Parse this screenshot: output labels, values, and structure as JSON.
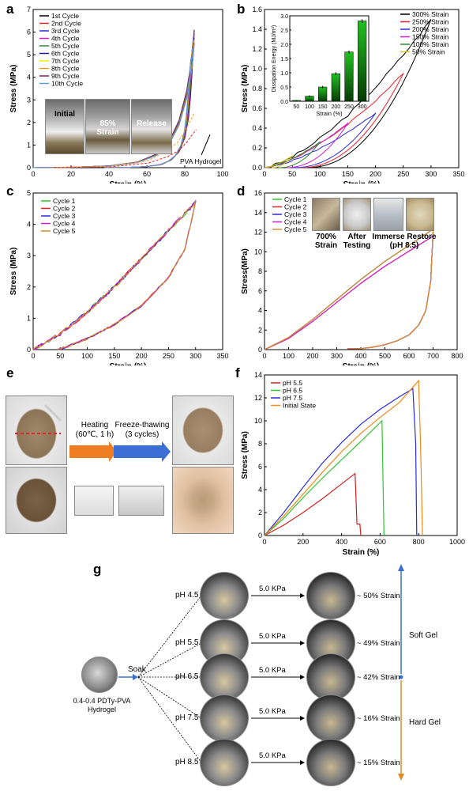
{
  "panels": {
    "a": {
      "label": "a"
    },
    "b": {
      "label": "b"
    },
    "c": {
      "label": "c"
    },
    "d": {
      "label": "d"
    },
    "e": {
      "label": "e"
    },
    "f": {
      "label": "f"
    },
    "g": {
      "label": "g"
    }
  },
  "chart_data": [
    {
      "id": "a",
      "type": "line",
      "xlabel": "Strain (%)",
      "ylabel": "Stress (MPa)",
      "xlim": [
        0,
        100
      ],
      "ylim": [
        0,
        7
      ],
      "xticks": [
        0,
        20,
        40,
        60,
        80,
        100
      ],
      "yticks": [
        0,
        1,
        2,
        3,
        4,
        5,
        6,
        7
      ],
      "legend": "top-left",
      "series": [
        {
          "name": "1st Cycle",
          "color": "#000000"
        },
        {
          "name": "2nd Cycle",
          "color": "#e8202a"
        },
        {
          "name": "3rd Cycle",
          "color": "#2a2adc"
        },
        {
          "name": "4th Cycle",
          "color": "#d11fcb"
        },
        {
          "name": "5th Cycle",
          "color": "#2f8a2f"
        },
        {
          "name": "6th Cycle",
          "color": "#1c1c8c"
        },
        {
          "name": "7th Cycle",
          "color": "#f0f000"
        },
        {
          "name": "8th Cycle",
          "color": "#f0a020"
        },
        {
          "name": "9th Cycle",
          "color": "#8c1c5a"
        },
        {
          "name": "10th Cycle",
          "color": "#5aa0e0"
        }
      ],
      "loading_x": [
        0,
        20,
        40,
        55,
        65,
        72,
        77,
        81,
        84,
        85
      ],
      "loading_y": [
        0,
        0.02,
        0.08,
        0.25,
        0.6,
        1.2,
        2.1,
        3.4,
        5.0,
        6.1
      ],
      "unloading_x": [
        85,
        84,
        83,
        82,
        80,
        77,
        73,
        68,
        60,
        50,
        40
      ],
      "unloading_y": [
        6.1,
        4.4,
        3.1,
        2.2,
        1.3,
        0.7,
        0.35,
        0.15,
        0.05,
        0.01,
        0
      ],
      "pva_x": [
        10,
        40,
        60,
        70,
        76,
        80,
        83,
        85
      ],
      "pva_y": [
        0,
        0.05,
        0.3,
        0.7,
        1.1,
        1.6,
        2.1,
        2.4
      ],
      "annotations": {
        "pva": "PVA Hydrogel",
        "inset_initial": "Initial",
        "inset_strain_1": "85%",
        "inset_strain_2": "Strain",
        "inset_release": "Release"
      }
    },
    {
      "id": "b",
      "type": "line",
      "xlabel": "Strain (%)",
      "ylabel": "Stress (MPa)",
      "xlim": [
        0,
        350
      ],
      "ylim": [
        0,
        1.6
      ],
      "xticks": [
        0,
        50,
        100,
        150,
        200,
        250,
        300,
        350
      ],
      "yticks": [
        0.0,
        0.2,
        0.4,
        0.6,
        0.8,
        1.0,
        1.2,
        1.4,
        1.6
      ],
      "legend": "top-right",
      "series": [
        {
          "name": "300% Strain",
          "color": "#000000",
          "max_strain": 300,
          "peak": 1.5
        },
        {
          "name": "250% Strain",
          "color": "#e8202a",
          "max_strain": 250,
          "peak": 0.95
        },
        {
          "name": "200% Strain",
          "color": "#2a2adc",
          "max_strain": 200,
          "peak": 0.55
        },
        {
          "name": "150% Strain",
          "color": "#d11fcb",
          "max_strain": 150,
          "peak": 0.45
        },
        {
          "name": "100% Strain",
          "color": "#2f8a2f",
          "max_strain": 100,
          "peak": 0.26
        },
        {
          "name": "50% Strain",
          "color": "#d4c81e",
          "max_strain": 50,
          "peak": 0.12
        }
      ],
      "inset": {
        "type": "bar",
        "xlabel": "Strain (%)",
        "ylabel": "Dissipation Energy (MJ/m³)",
        "categories": [
          "50",
          "100",
          "150",
          "200",
          "250",
          "300"
        ],
        "values": [
          0.03,
          0.18,
          0.5,
          0.97,
          1.73,
          2.82
        ],
        "errors": [
          0.01,
          0.03,
          0.04,
          0.05,
          0.05,
          0.06
        ],
        "ylim": [
          0,
          3.0
        ],
        "yticks": [
          "0.0",
          "0.5",
          "1.0",
          "1.5",
          "2.0",
          "2.5",
          "3.0"
        ]
      }
    },
    {
      "id": "c",
      "type": "line",
      "xlabel": "Strain (%)",
      "ylabel": "Stress (MPa)",
      "xlim": [
        0,
        350
      ],
      "ylim": [
        0,
        5
      ],
      "xticks": [
        0,
        50,
        100,
        150,
        200,
        250,
        300,
        350
      ],
      "yticks": [
        0,
        1,
        2,
        3,
        4,
        5
      ],
      "legend": "top-left",
      "series": [
        {
          "name": "Cycle 1",
          "color": "#2fc62f"
        },
        {
          "name": "Cycle 2",
          "color": "#e8202a"
        },
        {
          "name": "Cycle 3",
          "color": "#2a2adc"
        },
        {
          "name": "Cycle 4",
          "color": "#d11fcb"
        },
        {
          "name": "Cycle 5",
          "color": "#d9902a"
        }
      ],
      "loading_x": [
        0,
        50,
        100,
        150,
        200,
        250,
        300
      ],
      "loading_y": [
        0,
        0.5,
        1.2,
        2.0,
        2.9,
        3.8,
        4.7
      ],
      "unloading_x": [
        300,
        280,
        250,
        200,
        150,
        100,
        60,
        45
      ],
      "unloading_y": [
        4.7,
        3.2,
        2.3,
        1.4,
        0.8,
        0.35,
        0.08,
        0
      ]
    },
    {
      "id": "d",
      "type": "line",
      "xlabel": "Strain (%)",
      "ylabel": "Stress(MPa)",
      "xlim": [
        0,
        800
      ],
      "ylim": [
        0,
        16
      ],
      "xticks": [
        0,
        100,
        200,
        300,
        400,
        500,
        600,
        700,
        800
      ],
      "yticks": [
        0,
        2,
        4,
        6,
        8,
        10,
        12,
        14,
        16
      ],
      "legend": "top-left",
      "series": [
        {
          "name": "Cycle 1",
          "color": "#2fc62f"
        },
        {
          "name": "Cycle 2",
          "color": "#e8202a"
        },
        {
          "name": "Cycle 3",
          "color": "#2a2adc"
        },
        {
          "name": "Cycle 4",
          "color": "#d11fcb"
        },
        {
          "name": "Cycle 5",
          "color": "#d9902a"
        }
      ],
      "loading_x": [
        0,
        100,
        200,
        300,
        400,
        500,
        600,
        700
      ],
      "loading_y": [
        0,
        1.2,
        3.0,
        5.0,
        7.0,
        8.8,
        10.4,
        12.0
      ],
      "unloading_x": [
        700,
        690,
        670,
        640,
        600,
        550,
        500,
        450,
        400,
        345
      ],
      "unloading_y": [
        12.0,
        7.0,
        4.0,
        2.5,
        1.5,
        0.9,
        0.5,
        0.25,
        0.1,
        0.1
      ],
      "annotations": [
        "700% Strain",
        "After Testing",
        "Immerse Restore (pH 8.5)"
      ]
    },
    {
      "id": "f",
      "type": "line",
      "xlabel": "Strain (%)",
      "ylabel": "Stress (MPa)",
      "xlim": [
        0,
        1000
      ],
      "ylim": [
        0,
        14
      ],
      "xticks": [
        0,
        200,
        400,
        600,
        800,
        1000
      ],
      "yticks": [
        0,
        2,
        4,
        6,
        8,
        10,
        12,
        14
      ],
      "legend": "top-left",
      "series": [
        {
          "name": "pH 5.5",
          "color": "#d11f1f",
          "x": [
            0,
            100,
            200,
            300,
            400,
            470,
            480,
            495,
            500
          ],
          "y": [
            0,
            0.9,
            2.0,
            3.2,
            4.5,
            5.4,
            1.0,
            1.0,
            0
          ]
        },
        {
          "name": "pH 6.5",
          "color": "#2fc62f",
          "x": [
            0,
            100,
            200,
            300,
            400,
            500,
            610,
            620
          ],
          "y": [
            0,
            1.5,
            3.3,
            5.0,
            6.6,
            8.2,
            10.0,
            0
          ]
        },
        {
          "name": "pH 7.5",
          "color": "#2a2adc",
          "x": [
            0,
            100,
            200,
            300,
            400,
            500,
            600,
            700,
            770,
            785,
            790
          ],
          "y": [
            0,
            2.0,
            4.2,
            6.3,
            8.1,
            9.7,
            11.0,
            12.1,
            12.8,
            8.0,
            0
          ]
        },
        {
          "name": "Initial State",
          "color": "#f08a1c",
          "x": [
            0,
            100,
            200,
            300,
            400,
            500,
            600,
            700,
            800,
            810,
            815,
            820
          ],
          "y": [
            0,
            1.7,
            3.6,
            5.5,
            7.3,
            8.9,
            10.3,
            11.6,
            13.5,
            8.0,
            4.0,
            0
          ]
        }
      ]
    }
  ],
  "panel_e": {
    "heating_1": "Heating",
    "heating_2": "(60℃, 1 h)",
    "freeze_1": "Freeze-thawing",
    "freeze_2": "(3 cycles)"
  },
  "panel_g": {
    "sample_label": "0.4-0.4 PDTy-PVA Hydrogel",
    "soak": "Soak",
    "rows": [
      {
        "ph": "pH 4.5",
        "pressure": "5.0 KPa",
        "strain": "~ 50% Strain"
      },
      {
        "ph": "pH 5.5",
        "pressure": "5.0 KPa",
        "strain": "~ 49% Strain"
      },
      {
        "ph": "pH 6.5",
        "pressure": "5.0 KPa",
        "strain": "~ 42% Strain"
      },
      {
        "ph": "pH 7.5",
        "pressure": "5.0 KPa",
        "strain": "~ 16% Strain"
      },
      {
        "ph": "pH 8.5",
        "pressure": "5.0 KPa",
        "strain": "~ 15% Strain"
      }
    ],
    "soft": "Soft Gel",
    "hard": "Hard Gel",
    "colors": {
      "soft": "#3b6fd4",
      "hard": "#e08a2a"
    }
  }
}
